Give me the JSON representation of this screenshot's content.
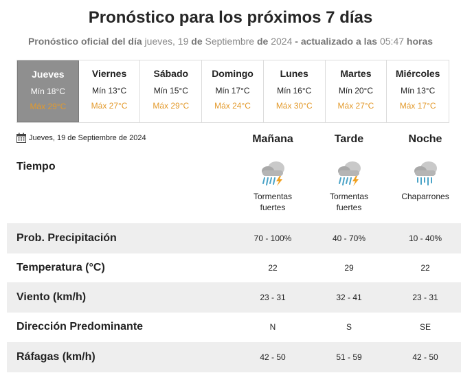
{
  "header": {
    "title": "Pronóstico para los próximos 7 días",
    "sub_lead": "Pronóstico oficial del día",
    "sub_weekday": "jueves, 19",
    "sub_de1": "de",
    "sub_month": "Septiembre",
    "sub_de2": "de",
    "sub_year": "2024",
    "sub_updated": "- actualizado a las",
    "sub_time": "05:47",
    "sub_horas": "horas"
  },
  "days": [
    {
      "name": "Jueves",
      "min": "Mín 18°C",
      "max": "Máx 29°C",
      "active": true
    },
    {
      "name": "Viernes",
      "min": "Mín 13°C",
      "max": "Máx 27°C"
    },
    {
      "name": "Sábado",
      "min": "Mín 15°C",
      "max": "Máx 29°C"
    },
    {
      "name": "Domingo",
      "min": "Mín 17°C",
      "max": "Máx 24°C"
    },
    {
      "name": "Lunes",
      "min": "Mín 16°C",
      "max": "Máx 30°C"
    },
    {
      "name": "Martes",
      "min": "Mín 20°C",
      "max": "Máx 27°C"
    },
    {
      "name": "Miércoles",
      "min": "Mín 13°C",
      "max": "Máx 17°C"
    }
  ],
  "detail": {
    "date": "Jueves, 19 de Septiembre de 2024",
    "calendar_icon": "calendar-icon",
    "periods": [
      "Mañana",
      "Tarde",
      "Noche"
    ],
    "tiempo_label": "Tiempo",
    "weather": [
      {
        "icon": "thunderstorm-icon",
        "label_line1": "Tormentas",
        "label_line2": "fuertes"
      },
      {
        "icon": "thunderstorm-icon",
        "label_line1": "Tormentas",
        "label_line2": "fuertes"
      },
      {
        "icon": "showers-icon",
        "label_line1": "Chaparrones",
        "label_line2": ""
      }
    ],
    "rows": [
      {
        "label": "Prob. Precipitación",
        "values": [
          "70 - 100%",
          "40 - 70%",
          "10 - 40%"
        ]
      },
      {
        "label": "Temperatura (°C)",
        "values": [
          "22",
          "29",
          "22"
        ]
      },
      {
        "label": "Viento (km/h)",
        "values": [
          "23 - 31",
          "32 - 41",
          "23 - 31"
        ]
      },
      {
        "label": "Dirección Predominante",
        "values": [
          "N",
          "S",
          "SE"
        ]
      },
      {
        "label": "Ráfagas (km/h)",
        "values": [
          "42 - 50",
          "51 - 59",
          "42 - 50"
        ]
      }
    ]
  },
  "colors": {
    "max_temp": "#e39a2c",
    "active_day_bg": "#8f8f8f",
    "row_shade": "#eeeeee",
    "rain": "#4aa3c7",
    "bolt": "#f0a020"
  }
}
